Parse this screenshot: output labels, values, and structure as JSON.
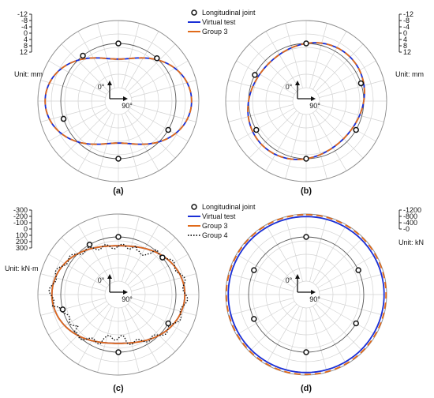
{
  "chart_data": [
    {
      "panel": "(a)",
      "type": "polar-line",
      "unit_label": "Unit: mm",
      "radial_ticks": [
        "-12",
        "-8",
        "-4",
        "0",
        "4",
        "8",
        "12"
      ],
      "radial_range": [
        -12,
        12
      ],
      "angle_labels": [
        "0°",
        "90°"
      ],
      "legend": [
        "Longitudinal joint",
        "Virtual test",
        "Group 3"
      ],
      "joints_deg": [
        0,
        42,
        120,
        180,
        252,
        322
      ],
      "series": [
        {
          "name": "Virtual test",
          "type": "polar-line",
          "style": "solid",
          "color": "#1a2fd6",
          "deform_mode": 2,
          "amplitude": 8.5,
          "phase_deg": 0
        },
        {
          "name": "Group 3",
          "type": "polar-line",
          "style": "dashed",
          "color": "#e06a1a",
          "deform_mode": 2,
          "amplitude": 8.5,
          "phase_deg": 0
        }
      ]
    },
    {
      "panel": "(b)",
      "type": "polar-line",
      "unit_label": "Unit: mm",
      "radial_ticks": [
        "-12",
        "-8",
        "-4",
        "0",
        "4",
        "8",
        "12"
      ],
      "radial_range": [
        -12,
        12
      ],
      "angle_labels": [
        "0°",
        "90°"
      ],
      "joints_deg": [
        0,
        72,
        120,
        180,
        240,
        297
      ],
      "series": [
        {
          "name": "Virtual test",
          "type": "polar-line",
          "style": "solid",
          "color": "#1a2fd6",
          "deform_mode": 2,
          "amplitude": 2.5,
          "phase_deg": -45
        },
        {
          "name": "Group 3",
          "type": "polar-line",
          "style": "dashed",
          "color": "#e06a1a",
          "deform_mode": 2,
          "amplitude": 2.5,
          "phase_deg": -45
        }
      ]
    },
    {
      "panel": "(c)",
      "type": "polar-line",
      "unit_label": "Unit: kN·m",
      "radial_ticks": [
        "-300",
        "-200",
        "-100",
        "0",
        "100",
        "200",
        "300"
      ],
      "radial_range": [
        -300,
        300
      ],
      "angle_labels": [
        "0°",
        "90°"
      ],
      "legend": [
        "Longitudinal joint",
        "Virtual test",
        "Group 3",
        "Group 4"
      ],
      "joints_deg": [
        0,
        50,
        120,
        180,
        255,
        330
      ],
      "series": [
        {
          "name": "Virtual test",
          "type": "polar-line",
          "style": "solid",
          "color": "#1a2fd6",
          "deform_mode": 2,
          "amplitude": 120,
          "phase_deg": 0
        },
        {
          "name": "Group 3",
          "type": "polar-line",
          "style": "solid",
          "color": "#e06a1a",
          "deform_mode": 2,
          "amplitude": 120,
          "phase_deg": 0
        },
        {
          "name": "Group 4",
          "type": "polar-line",
          "style": "dotted",
          "color": "#111111",
          "deform_mode": 2,
          "amplitude": 130,
          "phase_deg": 0
        }
      ]
    },
    {
      "panel": "(d)",
      "type": "polar-line",
      "unit_label": "Unit: kN",
      "radial_ticks": [
        "-1200",
        "-800",
        "-400",
        "-0"
      ],
      "radial_range": [
        -1200,
        0
      ],
      "angle_labels": [
        "0°",
        "90°"
      ],
      "joints_deg": [
        0,
        65,
        120,
        180,
        245,
        295
      ],
      "series": [
        {
          "name": "Virtual test",
          "type": "polar-line",
          "style": "solid",
          "color": "#1a2fd6",
          "deform_mode": 0,
          "amplitude": 0,
          "phase_deg": 0,
          "mean": -1050
        },
        {
          "name": "Group 3",
          "type": "polar-line",
          "style": "dashed",
          "color": "#e06a1a",
          "deform_mode": 0,
          "amplitude": 0,
          "phase_deg": 0,
          "mean": -1150
        }
      ]
    }
  ]
}
